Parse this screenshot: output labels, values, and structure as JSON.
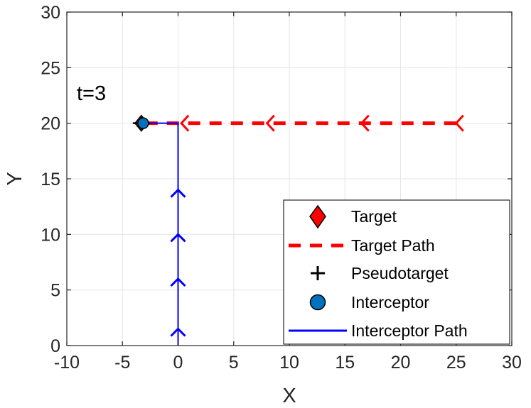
{
  "chart_data": {
    "type": "line",
    "xlabel": "X",
    "ylabel": "Y",
    "xlim": [
      -10,
      30
    ],
    "ylim": [
      0,
      30
    ],
    "xticks": [
      -10,
      -5,
      0,
      5,
      10,
      15,
      20,
      25,
      30
    ],
    "yticks": [
      0,
      5,
      10,
      15,
      20,
      25,
      30
    ],
    "grid": true,
    "annotation": "t=3",
    "legend_position": "bottom-right",
    "legend": [
      "Target",
      "Target Path",
      "Pseudotarget",
      "Interceptor",
      "Interceptor Path"
    ],
    "series": [
      {
        "name": "Target",
        "marker": "diamond",
        "color": "#ff0000",
        "points": [
          {
            "x": -3.3,
            "y": 20
          }
        ]
      },
      {
        "name": "Target Path",
        "style": "dashed",
        "color": "#ff0000",
        "x": [
          25,
          -3.3
        ],
        "y": [
          20,
          20
        ],
        "arrow_x": [
          25,
          16.5,
          8,
          0.3
        ],
        "arrow_direction": "left"
      },
      {
        "name": "Pseudotarget",
        "marker": "plus",
        "color": "#000000",
        "points": [
          {
            "x": -3.3,
            "y": 20
          }
        ]
      },
      {
        "name": "Interceptor",
        "marker": "circle",
        "color": "#0072bd",
        "points": [
          {
            "x": -3.2,
            "y": 20
          }
        ]
      },
      {
        "name": "Interceptor Path",
        "style": "solid",
        "color": "#0000ff",
        "x": [
          0,
          0,
          -3.2
        ],
        "y": [
          0,
          20,
          20
        ],
        "arrow_y": [
          1.5,
          6,
          10,
          14
        ],
        "arrow_direction": "up"
      }
    ]
  }
}
